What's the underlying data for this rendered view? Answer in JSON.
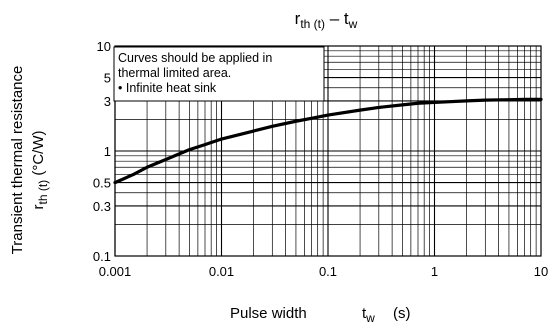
{
  "chart_data": {
    "type": "line",
    "title_main": "r",
    "title_sub": "th (t)",
    "title_sep": " – t",
    "title_sub2": "w",
    "xlabel": "Pulse width",
    "xlabel_sym": "t",
    "xlabel_sub": "w",
    "xlabel_unit": "(s)",
    "ylabel_line1": "Transient thermal resistance",
    "ylabel_sym": "r",
    "ylabel_sub": "th (t)",
    "ylabel_unit": "(°C/W)",
    "xscale": "log",
    "yscale": "log",
    "xlim": [
      0.001,
      10
    ],
    "ylim": [
      0.1,
      10
    ],
    "x_tick_labels": [
      "0.001",
      "0.01",
      "0.1",
      "1",
      "10"
    ],
    "y_tick_labels": [
      "0.1",
      "0.3",
      "0.5",
      "1",
      "3",
      "5",
      "10"
    ],
    "y_tick_values": [
      0.1,
      0.3,
      0.5,
      1,
      3,
      5,
      10
    ],
    "grid": true,
    "annotation": {
      "line1": "Curves should be applied in",
      "line2": "thermal limited area.",
      "line3": "• Infinite heat sink"
    },
    "series": [
      {
        "x": [
          0.001,
          0.0015,
          0.002,
          0.003,
          0.005,
          0.007,
          0.01,
          0.02,
          0.03,
          0.05,
          0.07,
          0.1,
          0.2,
          0.3,
          0.5,
          0.7,
          1,
          2,
          3,
          5,
          7,
          10
        ],
        "y": [
          0.5,
          0.6,
          0.7,
          0.83,
          1.03,
          1.15,
          1.3,
          1.55,
          1.72,
          1.92,
          2.05,
          2.2,
          2.45,
          2.6,
          2.75,
          2.85,
          2.9,
          3.0,
          3.05,
          3.08,
          3.1,
          3.1
        ]
      }
    ]
  }
}
